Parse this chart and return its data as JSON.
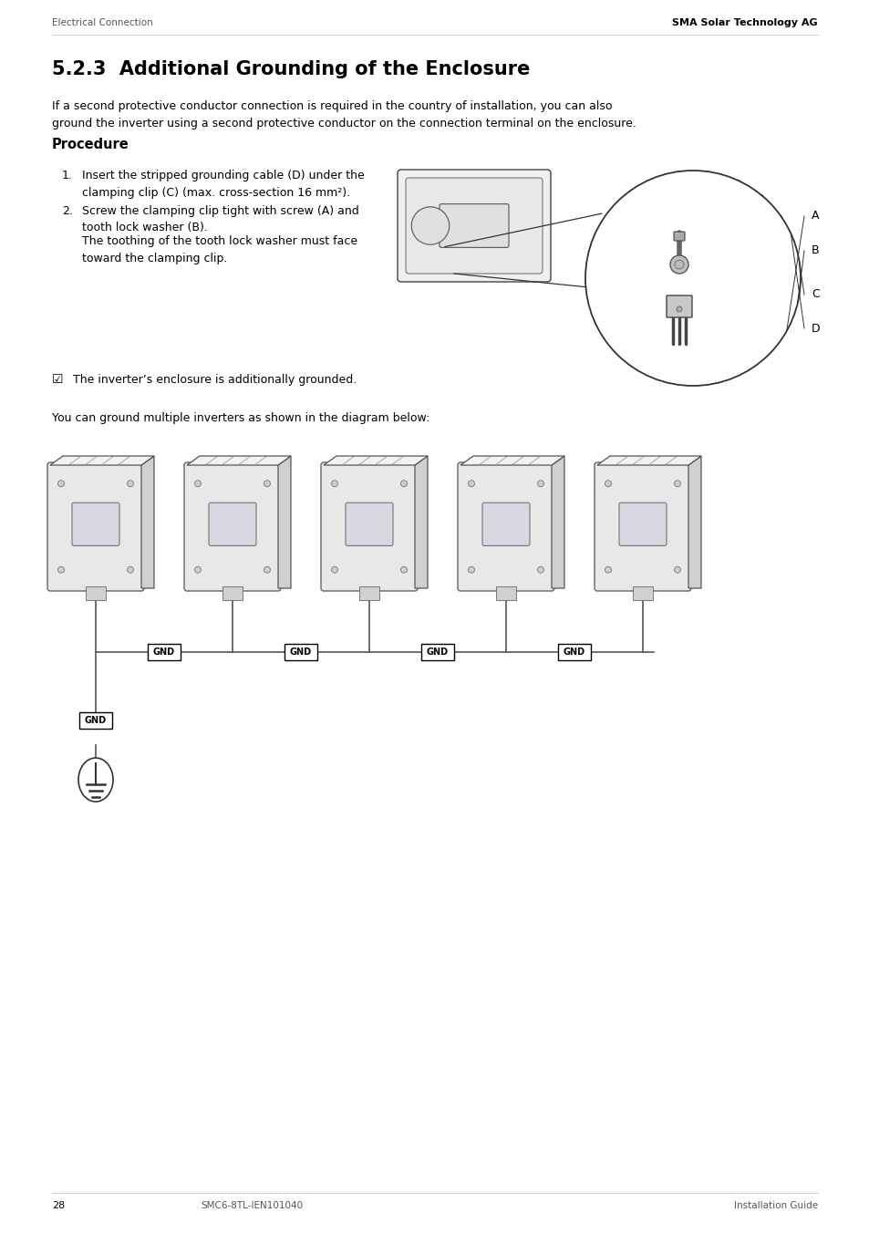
{
  "header_left": "Electrical Connection",
  "header_right": "SMA Solar Technology AG",
  "section_title": "5.2.3  Additional Grounding of the Enclosure",
  "intro_text": "If a second protective conductor connection is required in the country of installation, you can also\nground the inverter using a second protective conductor on the connection terminal on the enclosure.",
  "procedure_title": "Procedure",
  "step1_num": "1.",
  "step1_text": "Insert the stripped grounding cable (D) under the\nclamping clip (C) (max. cross-section 16 mm²).",
  "step2_num": "2.",
  "step2_text": "Screw the clamping clip tight with screw (A) and\ntooth lock washer (B).",
  "step2_extra": "The toothing of the tooth lock washer must face\ntoward the clamping clip.",
  "checkmark_text": "The inverter’s enclosure is additionally grounded.",
  "diagram_text": "You can ground multiple inverters as shown in the diagram below:",
  "footer_page": "28",
  "footer_center": "SMC6-8TL-IEN101040",
  "footer_right": "Installation Guide",
  "bg_color": "#ffffff",
  "text_color": "#000000"
}
